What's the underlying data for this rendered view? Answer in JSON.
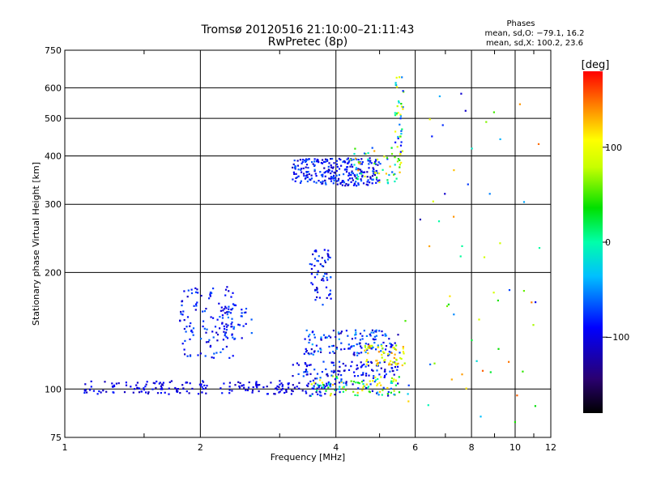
{
  "chart_data": {
    "type": "scatter",
    "title": "Tromsø 20120516 21:10:00–21:11:43",
    "subtitle": "RwPretec (8p)",
    "stats": {
      "heading": "Phases",
      "line1": "mean, sd,O: −79.1, 16.2",
      "line2": "mean, sd,X: 100.2, 23.6"
    },
    "xlabel": "Frequency [MHz]",
    "ylabel": "Stationary phase Virtual Height [km]",
    "x_scale": "log",
    "y_scale": "log",
    "xlim": [
      1,
      12
    ],
    "ylim": [
      75,
      750
    ],
    "x_ticks": [
      "1",
      "2",
      "4",
      "6",
      "8",
      "10",
      "12"
    ],
    "x_tick_values": [
      1,
      2,
      4,
      6,
      8,
      10,
      12
    ],
    "y_ticks": [
      "75",
      "100",
      "200",
      "300",
      "400",
      "500",
      "600",
      "750"
    ],
    "y_tick_values": [
      75,
      100,
      200,
      300,
      400,
      500,
      600,
      750
    ],
    "grid": true,
    "colorbar": {
      "label": "[deg]",
      "range": [
        -180,
        180
      ],
      "ticks": [
        "100",
        "0",
        "−100"
      ],
      "tick_values": [
        100,
        0,
        -100
      ]
    },
    "point_clusters": [
      {
        "x_range": [
          1.1,
          3.9
        ],
        "y_range": [
          97,
          105
        ],
        "count": 200,
        "phase_range": [
          -120,
          -80
        ]
      },
      {
        "x_range": [
          3.5,
          5.6
        ],
        "y_range": [
          96,
          108
        ],
        "count": 120,
        "phase_range": [
          -120,
          130
        ]
      },
      {
        "x_range": [
          1.8,
          2.4
        ],
        "y_range": [
          120,
          185
        ],
        "count": 120,
        "phase_range": [
          -115,
          -60
        ]
      },
      {
        "x_range": [
          2.2,
          2.6
        ],
        "y_range": [
          135,
          165
        ],
        "count": 40,
        "phase_range": [
          -110,
          -50
        ]
      },
      {
        "x_range": [
          3.2,
          5.5
        ],
        "y_range": [
          108,
          118
        ],
        "count": 100,
        "phase_range": [
          -120,
          -60
        ]
      },
      {
        "x_range": [
          3.4,
          5.6
        ],
        "y_range": [
          122,
          132
        ],
        "count": 80,
        "phase_range": [
          -120,
          -40
        ]
      },
      {
        "x_range": [
          3.4,
          5.5
        ],
        "y_range": [
          134,
          142
        ],
        "count": 60,
        "phase_range": [
          -120,
          -40
        ]
      },
      {
        "x_range": [
          4.6,
          5.7
        ],
        "y_range": [
          115,
          130
        ],
        "count": 60,
        "phase_range": [
          60,
          140
        ]
      },
      {
        "x_range": [
          3.5,
          3.9
        ],
        "y_range": [
          165,
          230
        ],
        "count": 60,
        "phase_range": [
          -120,
          -60
        ]
      },
      {
        "x_range": [
          3.2,
          5.0
        ],
        "y_range": [
          335,
          395
        ],
        "count": 260,
        "phase_range": [
          -120,
          -60
        ]
      },
      {
        "x_range": [
          4.3,
          5.6
        ],
        "y_range": [
          340,
          420
        ],
        "count": 60,
        "phase_range": [
          -80,
          140
        ]
      },
      {
        "x_range": [
          5.4,
          5.65
        ],
        "y_range": [
          400,
          640
        ],
        "count": 40,
        "phase_range": [
          -100,
          120
        ]
      },
      {
        "x_range": [
          5.6,
          11.5
        ],
        "y_range": [
          80,
          600
        ],
        "count": 60,
        "phase_range": [
          -120,
          160
        ]
      }
    ]
  }
}
